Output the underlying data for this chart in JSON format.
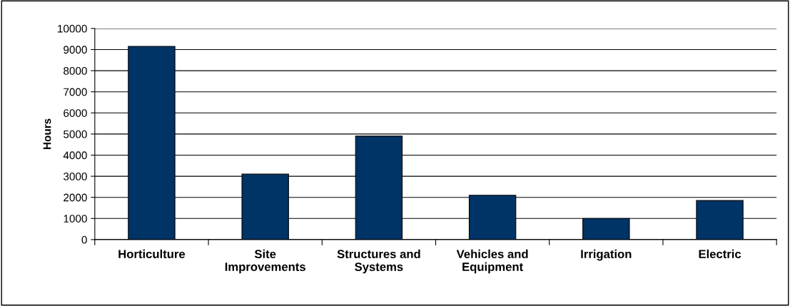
{
  "chart_data": {
    "type": "bar",
    "ylabel": "Hours",
    "categories": [
      "Horticulture",
      "Site\nImprovements",
      "Structures and\nSystems",
      "Vehicles and\nEquipment",
      "Irrigation",
      "Electric"
    ],
    "values": [
      9150,
      3100,
      4900,
      2100,
      1000,
      1850
    ],
    "color": "#003366",
    "ylim": [
      0,
      10000
    ],
    "yticks": [
      0,
      1000,
      2000,
      3000,
      4000,
      5000,
      6000,
      7000,
      8000,
      9000,
      10000
    ],
    "grid": "y"
  }
}
